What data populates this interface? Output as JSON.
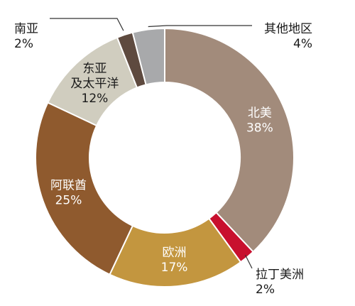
{
  "chart_data": {
    "type": "pie",
    "donut": true,
    "slices": [
      {
        "label": "北美",
        "value": 38,
        "display": "38%",
        "color": "#A28B7B"
      },
      {
        "label": "拉丁美洲",
        "value": 2,
        "display": "2%",
        "color": "#C8102E"
      },
      {
        "label": "欧洲",
        "value": 17,
        "display": "17%",
        "color": "#C3963F"
      },
      {
        "label": "阿联酋",
        "value": 25,
        "display": "25%",
        "color": "#8F5A2E"
      },
      {
        "label": "东亚\n及太平洋",
        "value": 12,
        "display": "12%",
        "color": "#D0CDBF"
      },
      {
        "label": "南亚",
        "value": 2,
        "display": "2%",
        "color": "#5E4A3F"
      },
      {
        "label": "其他地区",
        "value": 4,
        "display": "4%",
        "color": "#A8A9AB"
      }
    ]
  }
}
